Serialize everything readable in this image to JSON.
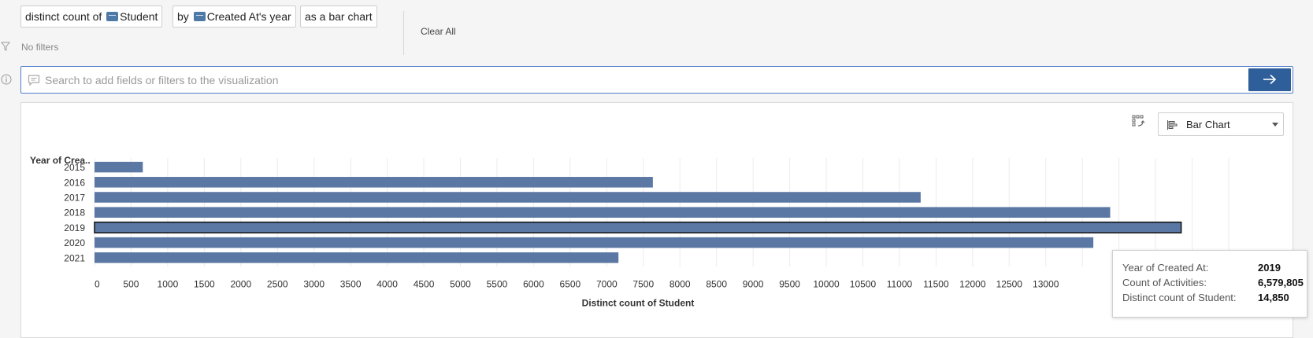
{
  "query": {
    "pill1_prefix": "distinct count of",
    "pill1_field": "Student",
    "pill2_prefix": "by",
    "pill2_field": "Created At's year",
    "pill3": "as a bar chart",
    "clear_all": "Clear All",
    "no_filters": "No filters"
  },
  "search": {
    "placeholder": "Search to add fields or filters to the visualization"
  },
  "toolbar": {
    "chart_type": "Bar Chart"
  },
  "chart_data": {
    "type": "bar",
    "orientation": "horizontal",
    "y_header": "Year of Crea..",
    "categories": [
      "2015",
      "2016",
      "2017",
      "2018",
      "2019",
      "2020",
      "2021"
    ],
    "values": [
      660,
      7630,
      11290,
      13880,
      14850,
      13650,
      7160
    ],
    "xlabel": "Distinct count of Student",
    "xlim": [
      0,
      15500
    ],
    "xticks": [
      "0",
      "500",
      "1000",
      "1500",
      "2000",
      "2500",
      "3000",
      "3500",
      "4000",
      "4500",
      "5000",
      "5500",
      "6000",
      "6500",
      "7000",
      "7500",
      "8000",
      "8500",
      "9000",
      "9500",
      "10000",
      "10500",
      "11000",
      "11500",
      "12000",
      "12500",
      "13000"
    ],
    "grid": true,
    "bar_color": "#5b77a3",
    "highlighted_category": "2019"
  },
  "tooltip": {
    "rows": [
      {
        "key": "Year of Created At:",
        "value": "2019"
      },
      {
        "key": "Count of Activities:",
        "value": "6,579,805"
      },
      {
        "key": "Distinct count of Student:",
        "value": "14,850"
      }
    ]
  }
}
